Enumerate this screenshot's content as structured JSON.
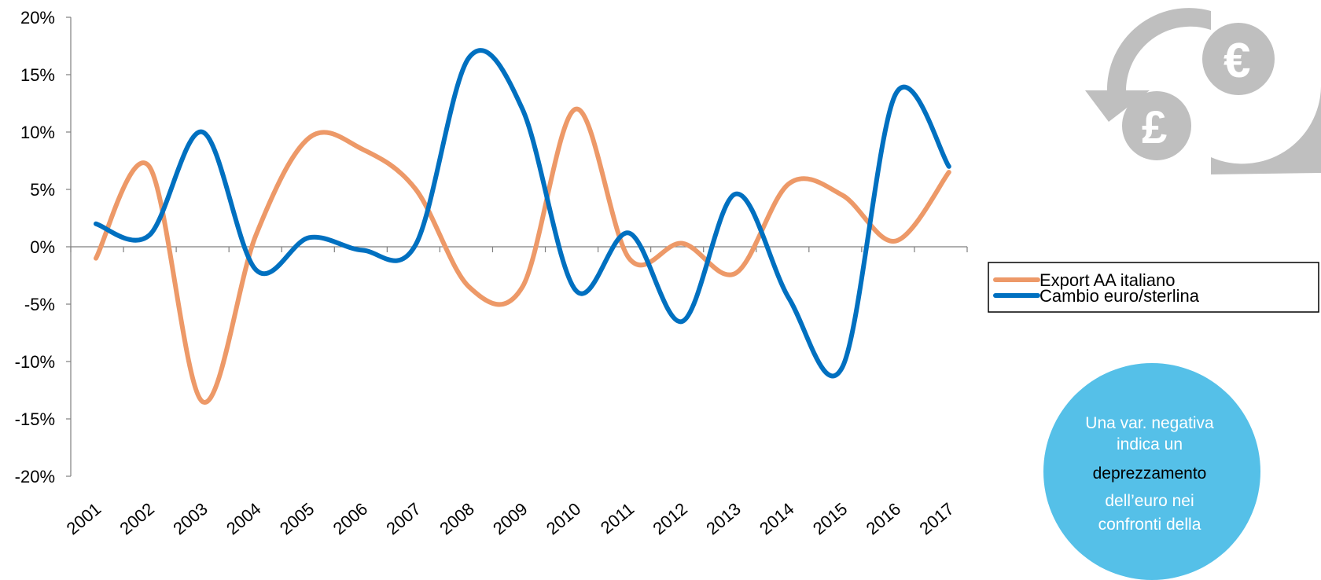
{
  "chart_data": {
    "type": "line",
    "title": "",
    "xlabel": "",
    "ylabel": "",
    "x": [
      "2001",
      "2002",
      "2003",
      "2004",
      "2005",
      "2006",
      "2007",
      "2008",
      "2009",
      "2010",
      "2011",
      "2012",
      "2013",
      "2014",
      "2015",
      "2016",
      "2017"
    ],
    "ylim": [
      -20,
      20
    ],
    "yticks": [
      "-20%",
      "-15%",
      "-10%",
      "-5%",
      "0%",
      "5%",
      "10%",
      "15%",
      "20%"
    ],
    "yticks_values": [
      -20,
      -15,
      -10,
      -5,
      0,
      5,
      10,
      15,
      20
    ],
    "grid": false,
    "legend_position": "right",
    "smooth": true,
    "series": [
      {
        "name": "Export AA italiano",
        "color": "#ED9968",
        "values": [
          -1.0,
          7.0,
          -13.5,
          1.0,
          9.5,
          8.5,
          5.0,
          -3.5,
          -3.5,
          12.0,
          -1.0,
          0.3,
          -2.3,
          5.5,
          4.5,
          0.5,
          6.5
        ]
      },
      {
        "name": "Cambio euro/sterlina",
        "color": "#0070C0",
        "values": [
          2.0,
          1.0,
          10.0,
          -2.0,
          0.8,
          -0.3,
          0.2,
          16.5,
          12.0,
          -3.8,
          1.2,
          -6.5,
          4.6,
          -4.5,
          -10.5,
          13.3,
          7.0
        ]
      }
    ]
  },
  "note": {
    "line1": "Una var. negativa",
    "line2": "indica un",
    "line3": "deprezzamento",
    "line4": "dell’euro nei",
    "line5": "confronti della",
    "bg_color": "#55C0E8"
  },
  "currency_icon": {
    "name": "currency-exchange-icon",
    "symbol_euro": "€",
    "symbol_pound": "£",
    "color": "#BFBFBF"
  }
}
